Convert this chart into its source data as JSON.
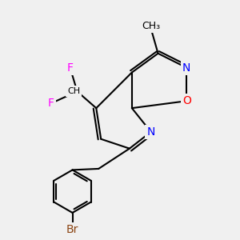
{
  "background_color": "#f0f0f0",
  "bond_color": "#000000",
  "atom_colors": {
    "N": "#0000ff",
    "O": "#ff0000",
    "F": "#ff00ff",
    "Br": "#8b4513",
    "C": "#000000"
  },
  "figsize": [
    3.0,
    3.0
  ],
  "dpi": 100
}
